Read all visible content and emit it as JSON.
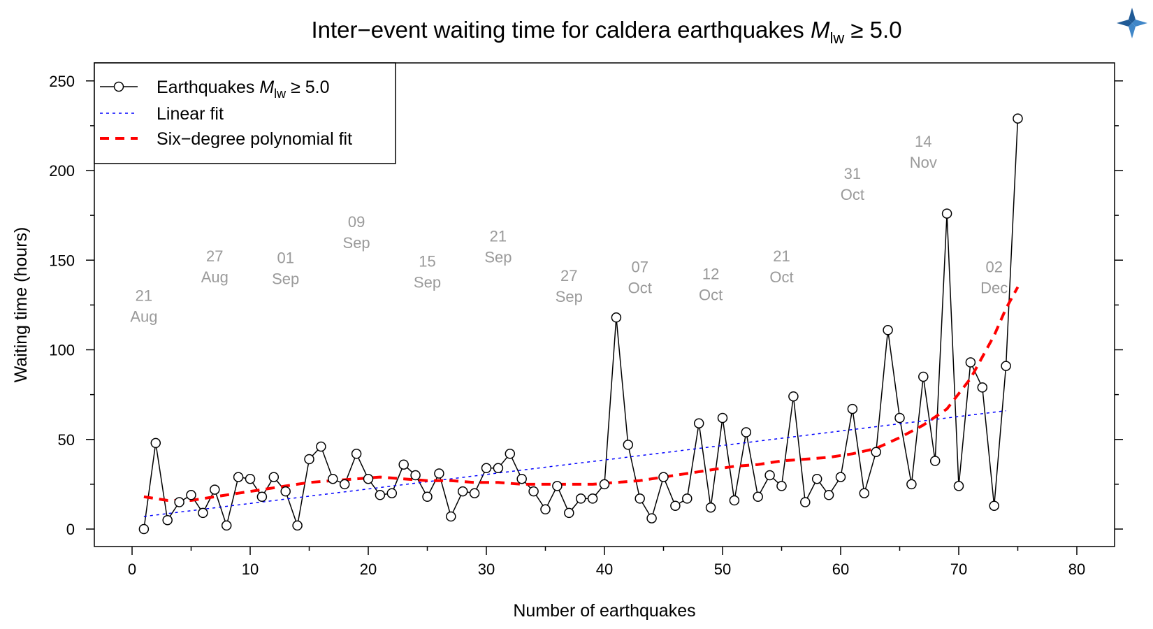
{
  "logo": {
    "name": "corner-logo"
  },
  "chart_data": {
    "type": "line",
    "title_main": "Inter−event waiting time for caldera earthquakes ",
    "title_mag_symbol": "M",
    "title_mag_subscript": "lw",
    "title_mag_rest": " ≥ 5.0",
    "xlabel": "Number of earthquakes",
    "ylabel": "Waiting time (hours)",
    "xlim": [
      0,
      80
    ],
    "ylim": [
      0,
      250
    ],
    "x_ticks": [
      0,
      10,
      20,
      30,
      40,
      50,
      60,
      70,
      80
    ],
    "y_ticks": [
      0,
      50,
      100,
      150,
      200,
      250
    ],
    "x_minor_step": 5,
    "y_minor_step": 25,
    "grid": false,
    "legend": {
      "position": "top-left",
      "entries": [
        {
          "label_prefix": "Earthquakes ",
          "label_symbol": "M",
          "label_subscript": "lw",
          "label_suffix": " ≥ 5.0",
          "style": "line-with-circle",
          "color": "#000000"
        },
        {
          "label": "Linear fit",
          "style": "dotted",
          "color": "#0000ff"
        },
        {
          "label": "Six−degree polynomial fit",
          "style": "dashed",
          "color": "#ff0000"
        }
      ]
    },
    "series": [
      {
        "name": "Earthquakes",
        "color": "#000000",
        "marker": "open-circle",
        "x": [
          1,
          2,
          3,
          4,
          5,
          6,
          7,
          8,
          9,
          10,
          11,
          12,
          13,
          14,
          15,
          16,
          17,
          18,
          19,
          20,
          21,
          22,
          23,
          24,
          25,
          26,
          27,
          28,
          29,
          30,
          31,
          32,
          33,
          34,
          35,
          36,
          37,
          38,
          39,
          40,
          41,
          42,
          43,
          44,
          45,
          46,
          47,
          48,
          49,
          50,
          51,
          52,
          53,
          54,
          55,
          56,
          57,
          58,
          59,
          60,
          61,
          62,
          63,
          64,
          65,
          66,
          67,
          68,
          69,
          70,
          71,
          72,
          73,
          74,
          75
        ],
        "y": [
          0,
          48,
          5,
          15,
          19,
          9,
          22,
          2,
          29,
          28,
          18,
          29,
          21,
          2,
          39,
          46,
          28,
          25,
          42,
          28,
          19,
          20,
          36,
          30,
          18,
          31,
          7,
          21,
          20,
          34,
          34,
          42,
          28,
          21,
          11,
          24,
          9,
          17,
          17,
          25,
          118,
          47,
          17,
          6,
          29,
          13,
          17,
          59,
          12,
          62,
          16,
          54,
          18,
          30,
          24,
          74,
          15,
          28,
          19,
          29,
          67,
          20,
          43,
          111,
          62,
          25,
          85,
          38,
          176,
          24,
          93,
          79,
          13,
          91,
          229
        ]
      },
      {
        "name": "Linear fit",
        "color": "#0000ff",
        "style": "dotted",
        "x": [
          1,
          74
        ],
        "y": [
          7,
          66
        ]
      },
      {
        "name": "Six−degree polynomial fit",
        "color": "#ff0000",
        "style": "dashed",
        "x": [
          1,
          3,
          5,
          7,
          9,
          11,
          13,
          15,
          17,
          19,
          21,
          23,
          25,
          27,
          29,
          31,
          33,
          35,
          37,
          39,
          41,
          43,
          45,
          47,
          49,
          51,
          53,
          55,
          57,
          59,
          61,
          63,
          65,
          67,
          69,
          71,
          73,
          74,
          75
        ],
        "y": [
          18,
          16,
          16,
          18,
          20,
          22,
          24,
          26,
          27,
          28,
          29,
          28,
          27,
          27,
          26,
          26,
          25,
          25,
          25,
          25,
          26,
          27,
          29,
          31,
          33,
          35,
          36,
          38,
          39,
          40,
          42,
          45,
          51,
          58,
          67,
          84,
          108,
          123,
          135
        ]
      }
    ],
    "annotations": [
      {
        "x": 1,
        "y": 125,
        "line1": "21",
        "line2": "Aug"
      },
      {
        "x": 7,
        "y": 147,
        "line1": "27",
        "line2": "Aug"
      },
      {
        "x": 13,
        "y": 146,
        "line1": "01",
        "line2": "Sep"
      },
      {
        "x": 19,
        "y": 166,
        "line1": "09",
        "line2": "Sep"
      },
      {
        "x": 25,
        "y": 144,
        "line1": "15",
        "line2": "Sep"
      },
      {
        "x": 31,
        "y": 158,
        "line1": "21",
        "line2": "Sep"
      },
      {
        "x": 37,
        "y": 136,
        "line1": "27",
        "line2": "Sep"
      },
      {
        "x": 43,
        "y": 141,
        "line1": "07",
        "line2": "Oct"
      },
      {
        "x": 49,
        "y": 137,
        "line1": "12",
        "line2": "Oct"
      },
      {
        "x": 55,
        "y": 147,
        "line1": "21",
        "line2": "Oct"
      },
      {
        "x": 61,
        "y": 193,
        "line1": "31",
        "line2": "Oct"
      },
      {
        "x": 67,
        "y": 211,
        "line1": "14",
        "line2": "Nov"
      },
      {
        "x": 73,
        "y": 141,
        "line1": "02",
        "line2": "Dec"
      }
    ]
  }
}
